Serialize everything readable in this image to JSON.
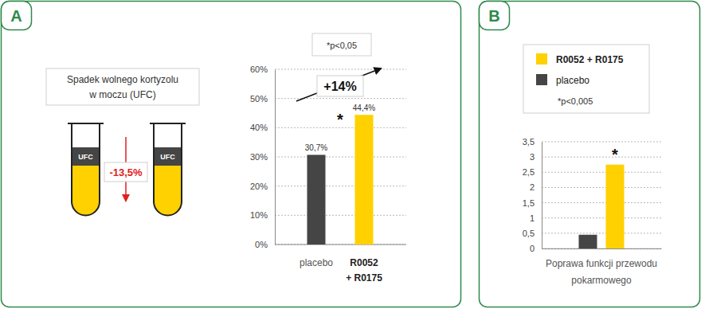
{
  "illustration": {
    "label_lines": [
      "Spadek wolnego kortyzolu",
      "w moczu (UFC)"
    ],
    "tube_label": "UFC",
    "change": "-13,5%"
  },
  "chart_data": [
    {
      "type": "bar",
      "title": "A",
      "categories": [
        "placebo",
        "R0052 + R0175"
      ],
      "values": [
        30.7,
        44.4
      ],
      "value_labels": [
        "30,7%",
        "44,4%"
      ],
      "colors": [
        "#454545",
        "#ffd100"
      ],
      "data_labels": true,
      "ylim": [
        0,
        60
      ],
      "yticks": [
        {
          "value": 0,
          "label": "0%"
        },
        {
          "value": 10,
          "label": "10%"
        },
        {
          "value": 20,
          "label": "20%"
        },
        {
          "value": 30,
          "label": "30%"
        },
        {
          "value": 40,
          "label": "40%"
        },
        {
          "value": 50,
          "label": "50%"
        },
        {
          "value": 60,
          "label": "60%"
        }
      ],
      "grid": true,
      "annotations": [
        "*p<0,05",
        "+14%",
        "*"
      ]
    },
    {
      "type": "bar",
      "title": "B",
      "categories": [
        null
      ],
      "series": [
        {
          "name": "R0052 + R0175",
          "color": "#ffd100",
          "values": [
            2.75
          ]
        },
        {
          "name": "placebo",
          "color": "#454545",
          "values": [
            0.45
          ]
        }
      ],
      "xlabel": "Poprawa funkcji przewodu pokarmowego",
      "ylim": [
        0,
        3.5
      ],
      "yticks": [
        0,
        {
          "value": 0.5,
          "label": "0,5"
        },
        1,
        {
          "value": 1.5,
          "label": "1,5"
        },
        2,
        {
          "value": 2.5,
          "label": "2,5"
        },
        3,
        {
          "value": 3.5,
          "label": "3,5"
        }
      ],
      "grid": true,
      "legend": "top",
      "tick_labels": "y",
      "annotations": [
        "*p<0,005",
        "*"
      ]
    }
  ]
}
